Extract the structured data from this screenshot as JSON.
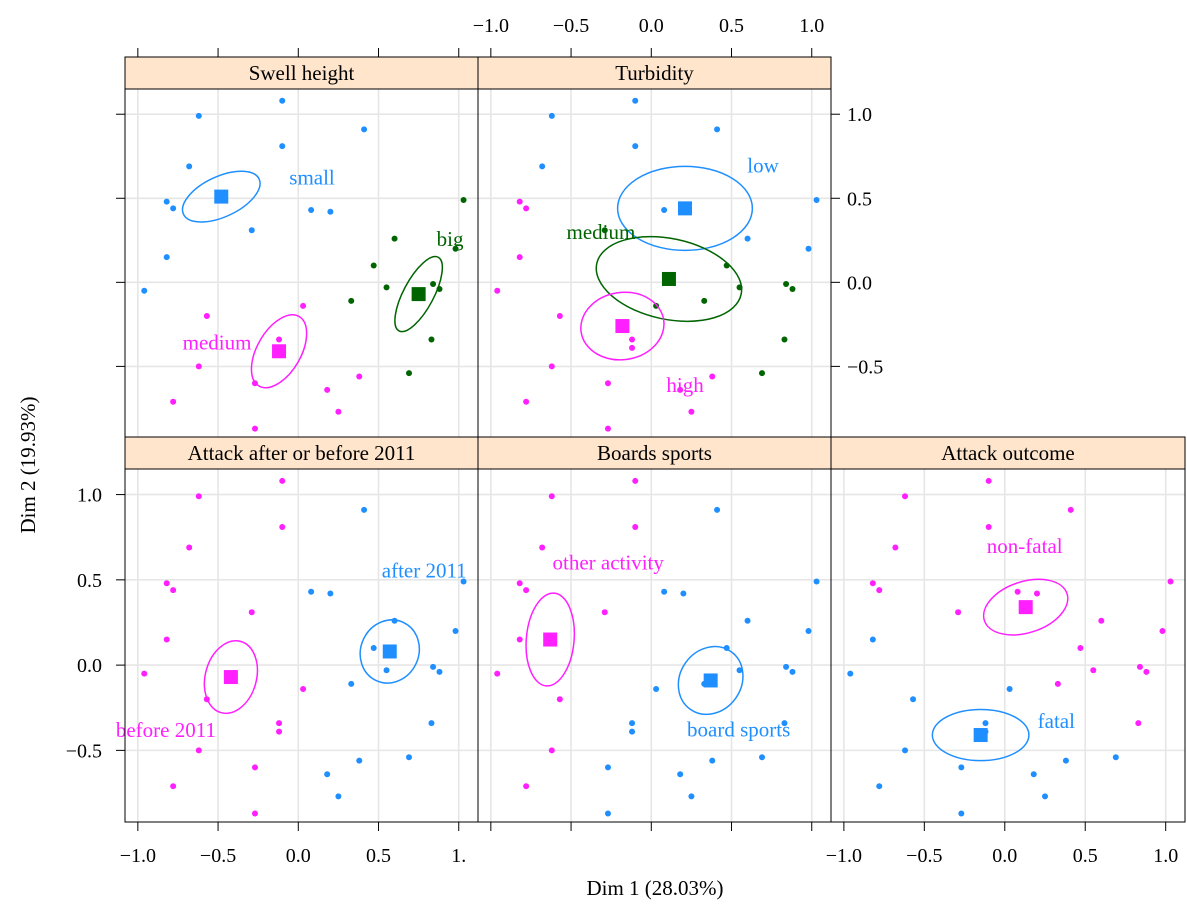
{
  "xlabel": "Dim 1 (28.03%)",
  "ylabel": "Dim 2 (19.93%)",
  "colors": {
    "group1": "#1f8fff",
    "group2": "#ff1fff",
    "group3": "#006400",
    "grid": "#e6e6e6",
    "strip": "#ffe5cc"
  },
  "x_ticks": [
    {
      "value": -1.0,
      "label": "−1.0"
    },
    {
      "value": -0.5,
      "label": "−0.5"
    },
    {
      "value": 0.0,
      "label": "0.0"
    },
    {
      "value": 0.5,
      "label": "0.5"
    },
    {
      "value": 1.0,
      "label": "1.0"
    }
  ],
  "y_ticks": [
    {
      "value": 1.0,
      "label": "1.0"
    },
    {
      "value": 0.5,
      "label": "0.5"
    },
    {
      "value": 0.0,
      "label": "0.0"
    },
    {
      "value": -0.5,
      "label": "−0.5"
    }
  ],
  "truncated_tick_label": "1.",
  "chart_data": {
    "type": "scatter",
    "xlabel": "Dim 1 (28.03%)",
    "ylabel": "Dim 2 (19.93%)",
    "xlim": [
      -1.08,
      1.12
    ],
    "ylim": [
      -0.92,
      1.15
    ],
    "grid": true,
    "individuals": [
      [
        -0.96,
        -0.05
      ],
      [
        -0.82,
        0.48
      ],
      [
        -0.78,
        0.44
      ],
      [
        -0.82,
        0.15
      ],
      [
        -0.78,
        -0.71
      ],
      [
        -0.68,
        0.69
      ],
      [
        -0.62,
        0.99
      ],
      [
        -0.62,
        -0.5
      ],
      [
        -0.57,
        -0.2
      ],
      [
        -0.29,
        0.31
      ],
      [
        -0.27,
        -0.6
      ],
      [
        -0.27,
        -0.87
      ],
      [
        -0.12,
        -0.34
      ],
      [
        -0.12,
        -0.39
      ],
      [
        -0.1,
        0.81
      ],
      [
        -0.1,
        1.08
      ],
      [
        0.03,
        -0.14
      ],
      [
        0.08,
        0.43
      ],
      [
        0.18,
        -0.64
      ],
      [
        0.2,
        0.42
      ],
      [
        0.25,
        -0.77
      ],
      [
        0.33,
        -0.11
      ],
      [
        0.38,
        -0.56
      ],
      [
        0.41,
        0.91
      ],
      [
        0.47,
        0.1
      ],
      [
        0.55,
        -0.03
      ],
      [
        0.6,
        0.26
      ],
      [
        0.69,
        -0.54
      ],
      [
        0.83,
        -0.34
      ],
      [
        0.84,
        -0.01
      ],
      [
        0.88,
        -0.04
      ],
      [
        0.98,
        0.2
      ],
      [
        1.03,
        0.49
      ]
    ],
    "panels": [
      {
        "title": "Swell height",
        "groups": [
          {
            "label": "small",
            "center": [
              -0.48,
              0.51
            ],
            "color_key": "group1",
            "ellipse": {
              "rx": 0.26,
              "ry": 0.12,
              "angle": 25
            }
          },
          {
            "label": "medium",
            "center": [
              -0.12,
              -0.41
            ],
            "color_key": "group2",
            "ellipse": {
              "rx": 0.25,
              "ry": 0.13,
              "angle": 60
            }
          },
          {
            "label": "big",
            "center": [
              0.75,
              -0.07
            ],
            "color_key": "group3",
            "ellipse": {
              "rx": 0.26,
              "ry": 0.09,
              "angle": 62
            }
          }
        ]
      },
      {
        "title": "Turbidity",
        "groups": [
          {
            "label": "low",
            "center": [
              0.21,
              0.44
            ],
            "color_key": "group1",
            "ellipse": {
              "rx": 0.42,
              "ry": 0.25,
              "angle": 0
            }
          },
          {
            "label": "medium",
            "center": [
              0.11,
              0.02
            ],
            "color_key": "group3",
            "ellipse": {
              "rx": 0.46,
              "ry": 0.24,
              "angle": -12
            }
          },
          {
            "label": "high",
            "center": [
              -0.18,
              -0.26
            ],
            "color_key": "group2",
            "ellipse": {
              "rx": 0.26,
              "ry": 0.2,
              "angle": 8
            }
          }
        ]
      },
      {
        "title": "Attack after or before 2011",
        "groups": [
          {
            "label": "after 2011",
            "center": [
              0.57,
              0.08
            ],
            "color_key": "group1",
            "ellipse": {
              "rx": 0.2,
              "ry": 0.17,
              "angle": 65
            }
          },
          {
            "label": "before 2011",
            "center": [
              -0.42,
              -0.07
            ],
            "color_key": "group2",
            "ellipse": {
              "rx": 0.23,
              "ry": 0.15,
              "angle": 75
            }
          }
        ]
      },
      {
        "title": "Boards sports",
        "groups": [
          {
            "label": "other activity",
            "center": [
              -0.63,
              0.15
            ],
            "color_key": "group2",
            "ellipse": {
              "rx": 0.29,
              "ry": 0.14,
              "angle": 85
            }
          },
          {
            "label": "board sports",
            "center": [
              0.37,
              -0.09
            ],
            "color_key": "group1",
            "ellipse": {
              "rx": 0.22,
              "ry": 0.18,
              "angle": 55
            }
          }
        ]
      },
      {
        "title": "Attack outcome",
        "groups": [
          {
            "label": "non-fatal",
            "center": [
              0.13,
              0.34
            ],
            "color_key": "group2",
            "ellipse": {
              "rx": 0.27,
              "ry": 0.15,
              "angle": 18
            }
          },
          {
            "label": "fatal",
            "center": [
              -0.15,
              -0.41
            ],
            "color_key": "group1",
            "ellipse": {
              "rx": 0.3,
              "ry": 0.15,
              "angle": 0
            }
          }
        ]
      }
    ]
  }
}
